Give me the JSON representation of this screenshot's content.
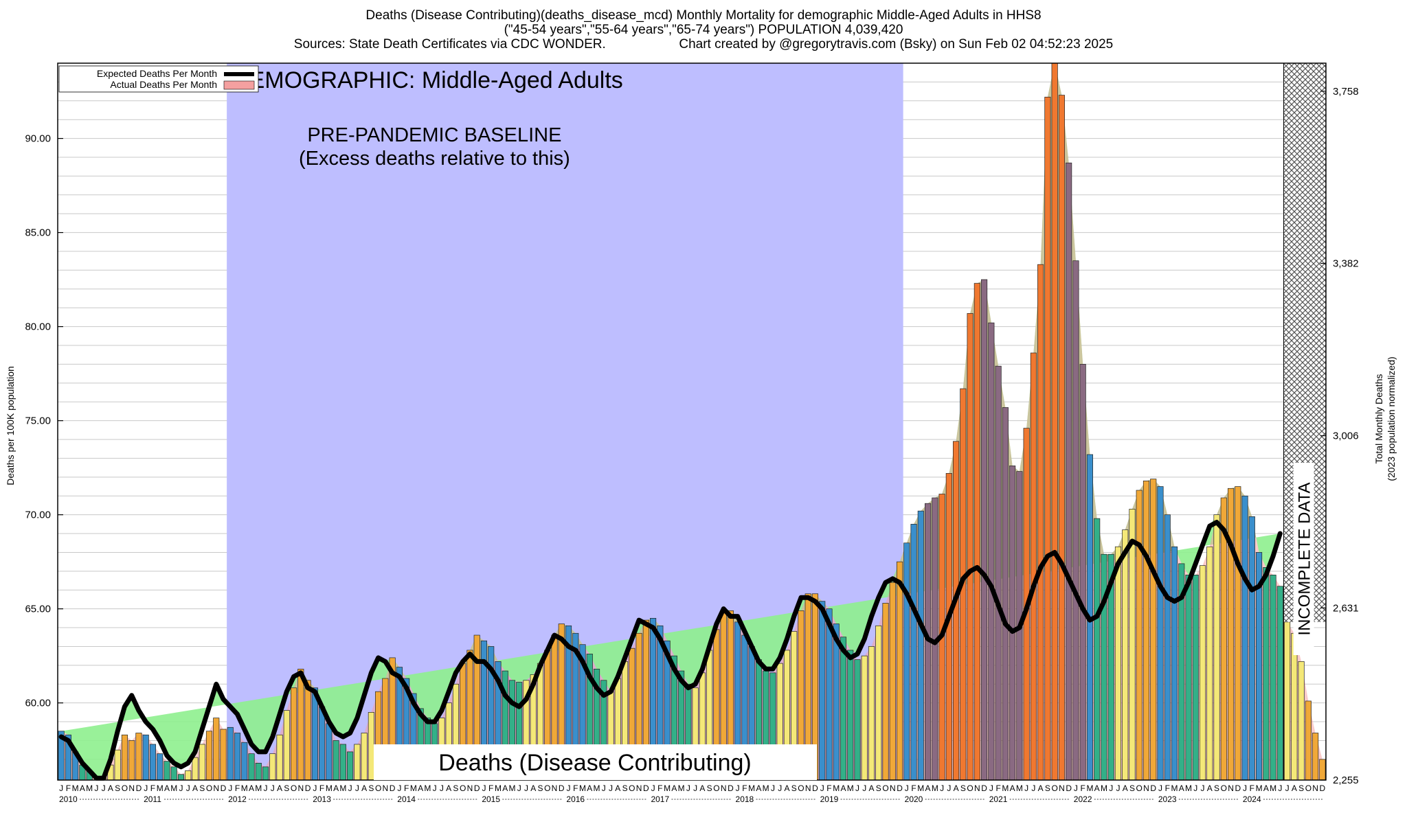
{
  "title": {
    "line1": "Deaths (Disease Contributing)(deaths_disease_mcd) Monthly Mortality for demographic Middle-Aged Adults in HHS8",
    "line2": "(\"45-54 years\",\"55-64 years\",\"65-74 years\") POPULATION 4,039,420",
    "line3_left": "Sources: State Death Certificates via CDC WONDER.",
    "line3_right": "Chart created by @gregorytravis.com (Bsky) on Sun Feb 02 04:52:23 2025"
  },
  "annotations": {
    "demographic": "DEMOGRAPHIC: Middle-Aged Adults",
    "baseline_line1": "PRE-PANDEMIC BASELINE",
    "baseline_line2": "(Excess deaths relative to this)",
    "footer_label": "Deaths (Disease Contributing)",
    "incomplete": "INCOMPLETE DATA"
  },
  "legend": {
    "expected": "Expected Deaths Per Month",
    "actual": "Actual Deaths Per Month"
  },
  "colors": {
    "baseline_band": "#bebeff",
    "expected_line": "#000000",
    "actual_fill": "#f4a0a0",
    "excess_fill": "#8ef08e",
    "winter": "#3a8fcc",
    "spring": "#33b088",
    "summer": "#f4e878",
    "autumn": "#f0a838",
    "covid": "#f07830",
    "covid_dark": "#8a6a82"
  },
  "chart_data": {
    "type": "bar",
    "ylabel_left": "Deaths per 100K population",
    "ylabel_right_line1": "Total Monthly Deaths",
    "ylabel_right_line2": "(2023 population normalized)",
    "ylim": [
      55.9,
      94
    ],
    "y_ticks_left": [
      "60.00",
      "65.00",
      "70.00",
      "75.00",
      "80.00",
      "85.00",
      "90.00"
    ],
    "y_ticks_left_values": [
      60,
      65,
      70,
      75,
      80,
      85,
      90
    ],
    "y_ticks_right": [
      "2,255",
      "2,631",
      "3,006",
      "3,382",
      "3,758"
    ],
    "y_ticks_right_values": [
      55.9,
      65.05,
      74.2,
      83.36,
      92.51
    ],
    "years": [
      "2010",
      "2011",
      "2012",
      "2013",
      "2014",
      "2015",
      "2016",
      "2017",
      "2018",
      "2019",
      "2020",
      "2021",
      "2022",
      "2023",
      "2024"
    ],
    "month_letters": [
      "J",
      "F",
      "M",
      "A",
      "M",
      "J",
      "J",
      "A",
      "S",
      "O",
      "N",
      "D"
    ],
    "baseline_period": [
      "2012-01",
      "2019-12"
    ],
    "incomplete_period": [
      "2024-07",
      "2024-12"
    ],
    "series": [
      {
        "name": "Actual Deaths Per Month",
        "values": [
          58.5,
          58.3,
          57.4,
          56.7,
          56.4,
          55.9,
          56.0,
          56.7,
          57.5,
          58.3,
          58.0,
          58.4,
          58.3,
          57.8,
          57.3,
          56.9,
          56.6,
          56.2,
          56.4,
          57.1,
          57.8,
          58.5,
          59.2,
          58.6,
          58.7,
          58.4,
          57.9,
          57.3,
          56.8,
          56.6,
          57.3,
          58.3,
          59.6,
          60.8,
          61.8,
          61.2,
          60.8,
          59.8,
          58.9,
          58.0,
          57.8,
          57.4,
          57.8,
          58.4,
          59.5,
          60.6,
          61.3,
          62.4,
          61.9,
          61.3,
          60.5,
          59.7,
          59.2,
          58.9,
          59.2,
          60.0,
          61.0,
          62.1,
          62.8,
          63.6,
          63.3,
          63.0,
          62.2,
          61.7,
          61.2,
          61.1,
          61.2,
          61.5,
          62.1,
          62.8,
          63.6,
          64.2,
          64.1,
          63.7,
          63.1,
          62.6,
          61.8,
          61.2,
          60.6,
          61.3,
          62.2,
          62.9,
          63.7,
          64.4,
          64.5,
          64.1,
          63.3,
          62.5,
          61.7,
          61.0,
          60.8,
          61.6,
          62.8,
          63.9,
          64.8,
          64.9,
          64.3,
          63.6,
          63.0,
          62.3,
          61.7,
          61.6,
          62.1,
          62.8,
          63.8,
          64.9,
          65.8,
          65.8,
          65.4,
          65.0,
          64.2,
          63.5,
          62.8,
          62.3,
          62.5,
          63.0,
          64.1,
          65.3,
          66.4,
          67.5,
          68.5,
          69.5,
          70.2,
          70.6,
          70.9,
          71.1,
          72.2,
          73.9,
          76.7,
          80.7,
          82.3,
          82.5,
          80.2,
          77.9,
          75.7,
          72.6,
          72.3,
          74.6,
          78.6,
          83.3,
          92.2,
          94.0,
          92.3,
          88.7,
          83.5,
          78.0,
          73.2,
          69.8,
          67.9,
          67.9,
          68.3,
          69.2,
          70.3,
          71.3,
          71.8,
          71.9,
          71.5,
          70.0,
          68.3,
          67.4,
          66.8,
          66.8,
          67.3,
          68.3,
          70.0,
          70.9,
          71.4,
          71.5,
          71.0,
          69.9,
          68.0,
          67.2,
          66.8,
          66.2,
          64.3,
          63.7,
          62.2,
          60.1,
          58.4,
          57.0
        ]
      },
      {
        "name": "Expected Deaths Per Month",
        "values": [
          58.2,
          58.0,
          57.4,
          56.8,
          56.4,
          56.0,
          56.0,
          57.0,
          58.5,
          59.8,
          60.4,
          59.6,
          59.0,
          58.6,
          58.0,
          57.2,
          56.8,
          56.6,
          56.8,
          57.4,
          58.6,
          59.8,
          61.0,
          60.2,
          59.8,
          59.4,
          58.6,
          57.8,
          57.4,
          57.4,
          58.2,
          59.4,
          60.6,
          61.4,
          61.6,
          60.8,
          60.6,
          59.8,
          59.0,
          58.4,
          58.2,
          58.4,
          59.2,
          60.4,
          61.6,
          62.4,
          62.2,
          61.6,
          61.4,
          60.8,
          60.0,
          59.4,
          59.0,
          59.0,
          59.6,
          60.6,
          61.6,
          62.2,
          62.6,
          62.2,
          62.2,
          61.8,
          61.2,
          60.4,
          60.0,
          59.8,
          60.2,
          61.0,
          62.0,
          62.8,
          63.6,
          63.4,
          63.0,
          62.8,
          62.2,
          61.4,
          60.8,
          60.4,
          60.6,
          61.4,
          62.4,
          63.4,
          64.4,
          64.2,
          64.0,
          63.4,
          62.6,
          61.8,
          61.2,
          60.8,
          61.0,
          61.8,
          63.0,
          64.2,
          65.0,
          64.6,
          64.6,
          63.8,
          63.0,
          62.2,
          61.8,
          61.8,
          62.4,
          63.4,
          64.6,
          65.6,
          65.6,
          65.4,
          65.0,
          64.2,
          63.4,
          62.8,
          62.4,
          62.6,
          63.4,
          64.6,
          65.6,
          66.4,
          66.6,
          66.4,
          65.8,
          65.0,
          64.2,
          63.4,
          63.2,
          63.6,
          64.6,
          65.6,
          66.6,
          67.0,
          67.2,
          66.8,
          66.2,
          65.2,
          64.2,
          63.8,
          64.0,
          65.0,
          66.2,
          67.2,
          67.8,
          68.0,
          67.4,
          66.6,
          65.8,
          65.0,
          64.4,
          64.6,
          65.4,
          66.4,
          67.4,
          68.0,
          68.6,
          68.4,
          67.8,
          67.0,
          66.2,
          65.6,
          65.4,
          65.6,
          66.4,
          67.4,
          68.4,
          69.4,
          69.6,
          69.2,
          68.4,
          67.4,
          66.6,
          66.0,
          66.2,
          66.8,
          67.8,
          69.0
        ]
      }
    ]
  }
}
